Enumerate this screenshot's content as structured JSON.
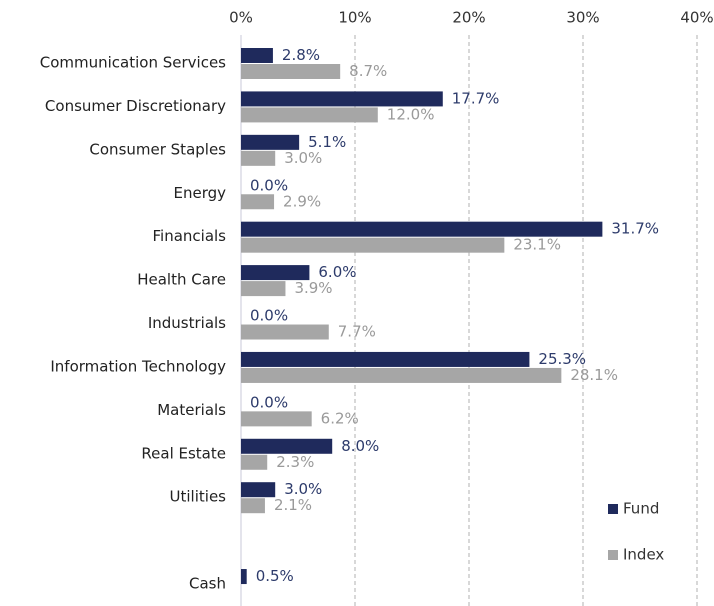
{
  "chart_data": {
    "type": "bar",
    "orientation": "horizontal",
    "categories": [
      "Communication Services",
      "Consumer Discretionary",
      "Consumer Staples",
      "Energy",
      "Financials",
      "Health Care",
      "Industrials",
      "Information Technology",
      "Materials",
      "Real Estate",
      "Utilities",
      null,
      "Cash"
    ],
    "series": [
      {
        "name": "Fund",
        "color": "#1f2a5c",
        "values": [
          2.8,
          17.7,
          5.1,
          0.0,
          31.7,
          6.0,
          0.0,
          25.3,
          0.0,
          8.0,
          3.0,
          null,
          0.5
        ],
        "value_labels": [
          "2.8%",
          "17.7%",
          "5.1%",
          "0.0%",
          "31.7%",
          "6.0%",
          "0.0%",
          "25.3%",
          "0.0%",
          "8.0%",
          "3.0%",
          null,
          "0.5%"
        ]
      },
      {
        "name": "Index",
        "color": "#a6a6a6",
        "values": [
          8.7,
          12.0,
          3.0,
          2.9,
          23.1,
          3.9,
          7.7,
          28.1,
          6.2,
          2.3,
          2.1,
          null,
          null
        ],
        "value_labels": [
          "8.7%",
          "12.0%",
          "3.0%",
          "2.9%",
          "23.1%",
          "3.9%",
          "7.7%",
          "28.1%",
          "6.2%",
          "2.3%",
          "2.1%",
          null,
          null
        ]
      }
    ],
    "xlim": [
      0,
      40
    ],
    "xticks": [
      {
        "value": 0,
        "label": "0%"
      },
      {
        "value": 10,
        "label": "10%"
      },
      {
        "value": 20,
        "label": "20%"
      },
      {
        "value": 30,
        "label": "30%"
      },
      {
        "value": 40,
        "label": "40%"
      }
    ],
    "grid": true,
    "legend": "lower right"
  }
}
